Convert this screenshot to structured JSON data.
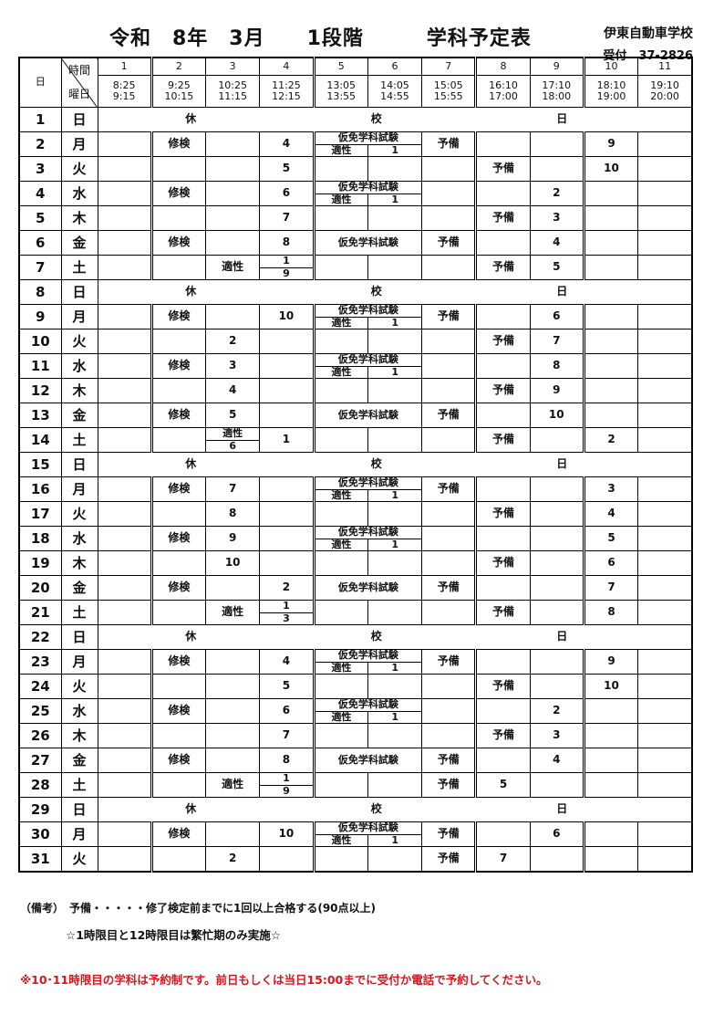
{
  "header": {
    "title": "令和　8年　3月　　1段階　　　学科予定表",
    "school": "伊東自動車学校",
    "reception": "受付　37-2826"
  },
  "table_header": {
    "day": "日",
    "time": "時間",
    "weekday": "曜日",
    "periods": [
      {
        "n": "1",
        "start": "8:25",
        "end": "9:15"
      },
      {
        "n": "2",
        "start": "9:25",
        "end": "10:15"
      },
      {
        "n": "3",
        "start": "10:25",
        "end": "11:15"
      },
      {
        "n": "4",
        "start": "11:25",
        "end": "12:15"
      },
      {
        "n": "5",
        "start": "13:05",
        "end": "13:55"
      },
      {
        "n": "6",
        "start": "14:05",
        "end": "14:55"
      },
      {
        "n": "7",
        "start": "15:05",
        "end": "15:55"
      },
      {
        "n": "8",
        "start": "16:10",
        "end": "17:00"
      },
      {
        "n": "9",
        "start": "17:10",
        "end": "18:00"
      },
      {
        "n": "10",
        "start": "18:10",
        "end": "19:00"
      },
      {
        "n": "11",
        "start": "19:10",
        "end": "20:00"
      }
    ]
  },
  "holiday_labels": [
    "休",
    "校",
    "日"
  ],
  "exam_label": "仮免学科試験",
  "aptitude_label": "適性",
  "exam_sub_value": "1",
  "rows": [
    {
      "d": "1",
      "w": "日",
      "holiday": true
    },
    {
      "d": "2",
      "w": "月",
      "c": {
        "2": "修検",
        "4": "4",
        "7": "予備",
        "10": "9"
      },
      "exam": "split"
    },
    {
      "d": "3",
      "w": "火",
      "c": {
        "4": "5",
        "8": "予備",
        "10": "10"
      }
    },
    {
      "d": "4",
      "w": "水",
      "c": {
        "2": "修検",
        "4": "6",
        "9": "2"
      },
      "exam": "split"
    },
    {
      "d": "5",
      "w": "木",
      "c": {
        "4": "7",
        "8": "予備",
        "9": "3"
      }
    },
    {
      "d": "6",
      "w": "金",
      "c": {
        "2": "修検",
        "4": "8",
        "7": "予備",
        "9": "4"
      },
      "exam": "full"
    },
    {
      "d": "7",
      "w": "土",
      "c": {
        "3": "適性",
        "8": "予備",
        "9": "5"
      },
      "split": {
        "col": "4",
        "top": "1",
        "bottom": "9"
      }
    },
    {
      "d": "8",
      "w": "日",
      "holiday": true
    },
    {
      "d": "9",
      "w": "月",
      "c": {
        "2": "修検",
        "4": "10",
        "7": "予備",
        "9": "6"
      },
      "exam": "split"
    },
    {
      "d": "10",
      "w": "火",
      "c": {
        "3": "2",
        "8": "予備",
        "9": "7"
      }
    },
    {
      "d": "11",
      "w": "水",
      "c": {
        "2": "修検",
        "3": "3",
        "9": "8"
      },
      "exam": "split"
    },
    {
      "d": "12",
      "w": "木",
      "c": {
        "3": "4",
        "8": "予備",
        "9": "9"
      }
    },
    {
      "d": "13",
      "w": "金",
      "c": {
        "2": "修検",
        "3": "5",
        "7": "予備",
        "9": "10"
      },
      "exam": "full"
    },
    {
      "d": "14",
      "w": "土",
      "c": {
        "4": "1",
        "8": "予備",
        "10": "2"
      },
      "split": {
        "col": "3",
        "top": "適性",
        "bottom": "6"
      }
    },
    {
      "d": "15",
      "w": "日",
      "holiday": true
    },
    {
      "d": "16",
      "w": "月",
      "c": {
        "2": "修検",
        "3": "7",
        "7": "予備",
        "10": "3"
      },
      "exam": "split"
    },
    {
      "d": "17",
      "w": "火",
      "c": {
        "3": "8",
        "8": "予備",
        "10": "4"
      }
    },
    {
      "d": "18",
      "w": "水",
      "c": {
        "2": "修検",
        "3": "9",
        "10": "5"
      },
      "exam": "split"
    },
    {
      "d": "19",
      "w": "木",
      "c": {
        "3": "10",
        "8": "予備",
        "10": "6"
      }
    },
    {
      "d": "20",
      "w": "金",
      "c": {
        "2": "修検",
        "4": "2",
        "7": "予備",
        "10": "7"
      },
      "exam": "full"
    },
    {
      "d": "21",
      "w": "土",
      "c": {
        "3": "適性",
        "8": "予備",
        "10": "8"
      },
      "split": {
        "col": "4",
        "top": "1",
        "bottom": "3"
      }
    },
    {
      "d": "22",
      "w": "日",
      "holiday": true
    },
    {
      "d": "23",
      "w": "月",
      "c": {
        "2": "修検",
        "4": "4",
        "7": "予備",
        "10": "9"
      },
      "exam": "split"
    },
    {
      "d": "24",
      "w": "火",
      "c": {
        "4": "5",
        "8": "予備",
        "10": "10"
      }
    },
    {
      "d": "25",
      "w": "水",
      "c": {
        "2": "修検",
        "4": "6",
        "9": "2"
      },
      "exam": "split"
    },
    {
      "d": "26",
      "w": "木",
      "c": {
        "4": "7",
        "8": "予備",
        "9": "3"
      }
    },
    {
      "d": "27",
      "w": "金",
      "c": {
        "2": "修検",
        "4": "8",
        "7": "予備",
        "9": "4"
      },
      "exam": "full"
    },
    {
      "d": "28",
      "w": "土",
      "c": {
        "3": "適性",
        "7": "予備",
        "8": "5"
      },
      "split": {
        "col": "4",
        "top": "1",
        "bottom": "9"
      }
    },
    {
      "d": "29",
      "w": "日",
      "holiday": true
    },
    {
      "d": "30",
      "w": "月",
      "c": {
        "2": "修検",
        "4": "10",
        "7": "予備",
        "9": "6"
      },
      "exam": "split"
    },
    {
      "d": "31",
      "w": "火",
      "c": {
        "3": "2",
        "7": "予備",
        "8": "7"
      }
    }
  ],
  "notes": {
    "remark": "（備考）　予備・・・・・修了検定前までに1回以上合格する(90点以上)",
    "star": "☆1時限目と12時限目は繁忙期のみ実施☆",
    "reservation": "※10･11時限目の学科は予約制です。前日もしくは当日15:00までに受付か電話で予約してください。"
  },
  "colors": {
    "text": "#111111",
    "warning": "#e0141c"
  }
}
